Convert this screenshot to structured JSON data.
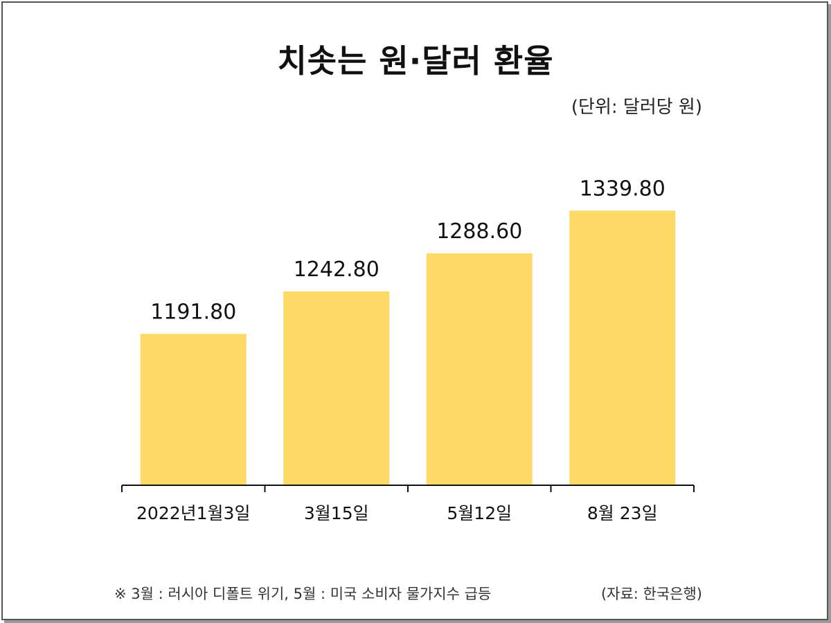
{
  "colors": {
    "bar": "#FDD966",
    "axis": "#111111",
    "text": "#111111"
  },
  "chart_data": {
    "type": "bar",
    "title": "치솟는 원·달러 환율",
    "unit_label": "(단위: 달러당 원)",
    "categories": [
      "2022년1월3일",
      "3월15일",
      "5월12일",
      "8월 23일"
    ],
    "values": [
      1191.8,
      1242.8,
      1288.6,
      1339.8
    ],
    "value_labels": [
      "1191.80",
      "1242.80",
      "1288.60",
      "1339.80"
    ],
    "ylim": [
      1010,
      1360
    ],
    "grid": false,
    "legend": "none"
  },
  "footer": {
    "note": "※ 3월 : 러시아 디폴트 위기, 5월 : 미국 소비자 물가지수 급등",
    "source": "(자료: 한국은행)"
  }
}
